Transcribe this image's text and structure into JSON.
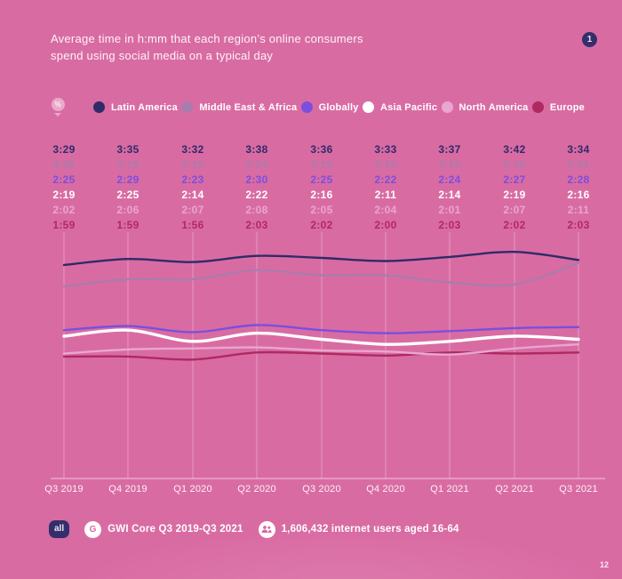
{
  "page": {
    "background": "#D96BA3",
    "badge": "1",
    "page_number": "12"
  },
  "header": {
    "title_line1": "Average time in h:mm that each region’s online consumers",
    "title_line2": "spend using social media on a typical day"
  },
  "legend": {
    "filter_icon": "percent-pin-icon",
    "filter_icon_glyph": "%"
  },
  "chart_data": {
    "type": "line",
    "title": "Average time in h:mm that each region’s online consumers spend using social media on a typical day",
    "value_format": "h:mm",
    "categories": [
      "Q3 2019",
      "Q4 2019",
      "Q1 2020",
      "Q2 2020",
      "Q3 2020",
      "Q4 2020",
      "Q1 2021",
      "Q2 2021",
      "Q3 2021"
    ],
    "series": [
      {
        "name": "Latin America",
        "color": "#2E2B68",
        "values": [
          "3:29",
          "3:35",
          "3:32",
          "3:38",
          "3:36",
          "3:33",
          "3:37",
          "3:42",
          "3:34"
        ]
      },
      {
        "name": "Middle East & Africa",
        "color": "#A97CAC",
        "values": [
          "3:08",
          "3:15",
          "3:15",
          "3:24",
          "3:19",
          "3:19",
          "3:12",
          "3:10",
          "3:31"
        ]
      },
      {
        "name": "Globally",
        "color": "#7A4FDE",
        "values": [
          "2:25",
          "2:29",
          "2:23",
          "2:30",
          "2:25",
          "2:22",
          "2:24",
          "2:27",
          "2:28"
        ]
      },
      {
        "name": "Asia Pacific",
        "color": "#FFFFFF",
        "values": [
          "2:19",
          "2:25",
          "2:14",
          "2:22",
          "2:16",
          "2:11",
          "2:14",
          "2:19",
          "2:16"
        ]
      },
      {
        "name": "North America",
        "color": "#E9A6CE",
        "values": [
          "2:02",
          "2:06",
          "2:07",
          "2:08",
          "2:05",
          "2:04",
          "2:01",
          "2:07",
          "2:11"
        ]
      },
      {
        "name": "Europe",
        "color": "#AF2A61",
        "values": [
          "1:59",
          "1:59",
          "1:56",
          "2:03",
          "2:02",
          "2:00",
          "2:03",
          "2:02",
          "2:03"
        ]
      }
    ],
    "ylim_minutes": [
      110,
      230
    ],
    "grid": "vertical-only",
    "legend_position": "top"
  },
  "footer": {
    "audience_badge": "all",
    "source_icon": "gwi-logo",
    "source_icon_glyph": "G",
    "source_label": "GWI Core Q3 2019-Q3 2021",
    "base_icon": "users",
    "base_label": "1,606,432 internet users aged 16-64"
  }
}
